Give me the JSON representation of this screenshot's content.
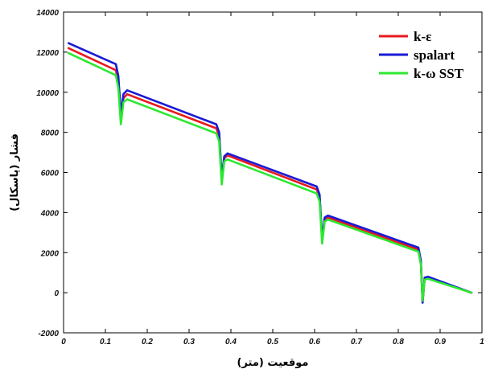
{
  "chart_data": {
    "type": "line",
    "title": "",
    "xlabel": "موقعیت (متر)",
    "ylabel": "فشار (پاسکال)",
    "xlim": [
      0,
      1
    ],
    "ylim": [
      -2000,
      14000
    ],
    "xticks": [
      "0",
      "0.1",
      "0.2",
      "0.3",
      "0.4",
      "0.5",
      "0.6",
      "0.7",
      "0.8",
      "0.9",
      "1"
    ],
    "yticks": [
      "-2000",
      "0",
      "2000",
      "4000",
      "6000",
      "8000",
      "10000",
      "12000",
      "14000"
    ],
    "legend_position": "top-right",
    "grid": false,
    "series": [
      {
        "name": "k-ε",
        "color": "#e8191e",
        "x": [
          0.012,
          0.125,
          0.131,
          0.137,
          0.143,
          0.152,
          0.365,
          0.372,
          0.378,
          0.384,
          0.392,
          0.605,
          0.612,
          0.618,
          0.624,
          0.632,
          0.848,
          0.854,
          0.858,
          0.863,
          0.871,
          0.975
        ],
        "y": [
          12200,
          11100,
          10500,
          8700,
          9700,
          9900,
          8200,
          7800,
          5600,
          6700,
          6850,
          5150,
          4750,
          2600,
          3650,
          3750,
          2150,
          1500,
          -450,
          700,
          750,
          0
        ]
      },
      {
        "name": "spalart",
        "color": "#1a1ad6",
        "x": [
          0.012,
          0.125,
          0.131,
          0.137,
          0.143,
          0.152,
          0.365,
          0.372,
          0.378,
          0.384,
          0.392,
          0.605,
          0.612,
          0.618,
          0.624,
          0.632,
          0.848,
          0.854,
          0.858,
          0.863,
          0.871,
          0.975
        ],
        "y": [
          12450,
          11400,
          10800,
          8900,
          9900,
          10100,
          8400,
          8000,
          5700,
          6800,
          6950,
          5300,
          4900,
          2650,
          3750,
          3850,
          2250,
          1600,
          -500,
          750,
          800,
          0
        ]
      },
      {
        "name": "k-ω SST",
        "color": "#2de830",
        "x": [
          0.012,
          0.125,
          0.131,
          0.137,
          0.143,
          0.152,
          0.365,
          0.372,
          0.378,
          0.384,
          0.392,
          0.605,
          0.612,
          0.618,
          0.624,
          0.632,
          0.848,
          0.854,
          0.858,
          0.863,
          0.871,
          0.975
        ],
        "y": [
          11950,
          10850,
          10200,
          8400,
          9500,
          9650,
          7950,
          7550,
          5400,
          6550,
          6650,
          4950,
          4550,
          2450,
          3550,
          3650,
          2050,
          1400,
          -400,
          650,
          700,
          0
        ]
      }
    ]
  }
}
